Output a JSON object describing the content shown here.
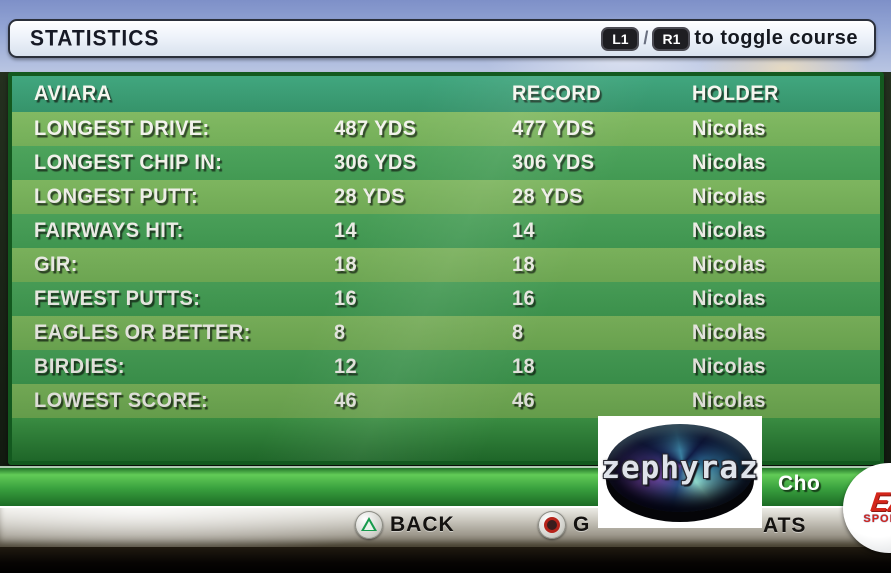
{
  "title_bar": {
    "title": "STATISTICS",
    "toggle_hint": {
      "l1": "L1",
      "separator": "/",
      "r1": "R1",
      "text": "to toggle course"
    }
  },
  "stats_table": {
    "course_header": "AVIARA",
    "columns": {
      "record": "RECORD",
      "holder": "HOLDER"
    },
    "rows": [
      {
        "label": "LONGEST DRIVE:",
        "value": "487 YDS",
        "record": "477 YDS",
        "holder": "Nicolas"
      },
      {
        "label": "LONGEST CHIP IN:",
        "value": "306 YDS",
        "record": "306 YDS",
        "holder": "Nicolas"
      },
      {
        "label": "LONGEST PUTT:",
        "value": "28 YDS",
        "record": "28 YDS",
        "holder": "Nicolas"
      },
      {
        "label": "FAIRWAYS HIT:",
        "value": "14",
        "record": "14",
        "holder": "Nicolas"
      },
      {
        "label": "GIR:",
        "value": "18",
        "record": "18",
        "holder": "Nicolas"
      },
      {
        "label": "FEWEST PUTTS:",
        "value": "16",
        "record": "16",
        "holder": "Nicolas"
      },
      {
        "label": "EAGLES OR BETTER:",
        "value": "8",
        "record": "8",
        "holder": "Nicolas"
      },
      {
        "label": "BIRDIES:",
        "value": "12",
        "record": "18",
        "holder": "Nicolas"
      },
      {
        "label": "LOWEST SCORE:",
        "value": "46",
        "record": "46",
        "holder": "Nicolas"
      }
    ]
  },
  "action_bar": {
    "choose_partial": "Cho"
  },
  "button_bar": {
    "back_label": "BACK",
    "partial_left": "G",
    "partial_right": "ATS"
  },
  "watermark": {
    "text": "zephyraz"
  },
  "ea_logo": {
    "line1": "EA",
    "line2": "SPORTS"
  },
  "colors": {
    "header_band": "#2f9a6e",
    "row_light": "#74b355",
    "row_dark": "#3f9e51",
    "panel_border": "#13591f",
    "accent_red": "#d3261b"
  }
}
